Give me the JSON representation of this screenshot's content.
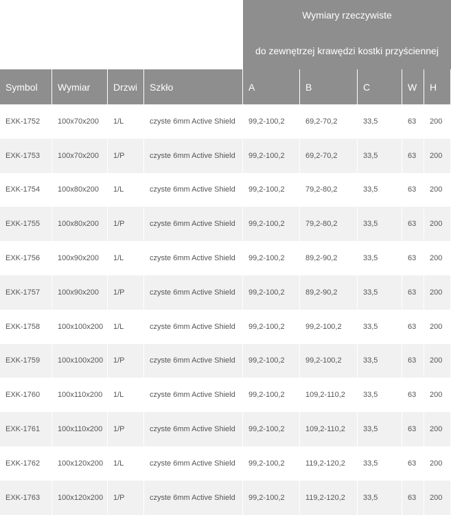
{
  "header": {
    "title": "Wymiary rzeczywiste",
    "subtitle": "do zewnętrzej krawędzi kostki przyściennej"
  },
  "table": {
    "columns": [
      "Symbol",
      "Wymiar",
      "Drzwi",
      "Szkło",
      "A",
      "B",
      "C",
      "W",
      "H"
    ],
    "rows": [
      [
        "EXK-1752",
        "100x70x200",
        "1/L",
        "czyste 6mm Active Shield",
        "99,2-100,2",
        "69,2-70,2",
        "33,5",
        "63",
        "200"
      ],
      [
        "EXK-1753",
        "100x70x200",
        "1/P",
        "czyste 6mm Active Shield",
        "99,2-100,2",
        "69,2-70,2",
        "33,5",
        "63",
        "200"
      ],
      [
        "EXK-1754",
        "100x80x200",
        "1/L",
        "czyste 6mm Active Shield",
        "99,2-100,2",
        "79,2-80,2",
        "33,5",
        "63",
        "200"
      ],
      [
        "EXK-1755",
        "100x80x200",
        "1/P",
        "czyste 6mm Active Shield",
        "99,2-100,2",
        "79,2-80,2",
        "33,5",
        "63",
        "200"
      ],
      [
        "EXK-1756",
        "100x90x200",
        "1/L",
        "czyste 6mm Active Shield",
        "99,2-100,2",
        "89,2-90,2",
        "33,5",
        "63",
        "200"
      ],
      [
        "EXK-1757",
        "100x90x200",
        "1/P",
        "czyste 6mm Active Shield",
        "99,2-100,2",
        "89,2-90,2",
        "33,5",
        "63",
        "200"
      ],
      [
        "EXK-1758",
        "100x100x200",
        "1/L",
        "czyste 6mm Active Shield",
        "99,2-100,2",
        "99,2-100,2",
        "33,5",
        "63",
        "200"
      ],
      [
        "EXK-1759",
        "100x100x200",
        "1/P",
        "czyste 6mm Active Shield",
        "99,2-100,2",
        "99,2-100,2",
        "33,5",
        "63",
        "200"
      ],
      [
        "EXK-1760",
        "100x110x200",
        "1/L",
        "czyste 6mm Active Shield",
        "99,2-100,2",
        "109,2-110,2",
        "33,5",
        "63",
        "200"
      ],
      [
        "EXK-1761",
        "100x110x200",
        "1/P",
        "czyste 6mm Active Shield",
        "99,2-100,2",
        "109,2-110,2",
        "33,5",
        "63",
        "200"
      ],
      [
        "EXK-1762",
        "100x120x200",
        "1/L",
        "czyste 6mm Active Shield",
        "99,2-100,2",
        "119,2-120,2",
        "33,5",
        "63",
        "200"
      ],
      [
        "EXK-1763",
        "100x120x200",
        "1/P",
        "czyste 6mm Active Shield",
        "99,2-100,2",
        "119,2-120,2",
        "33,5",
        "63",
        "200"
      ]
    ]
  }
}
